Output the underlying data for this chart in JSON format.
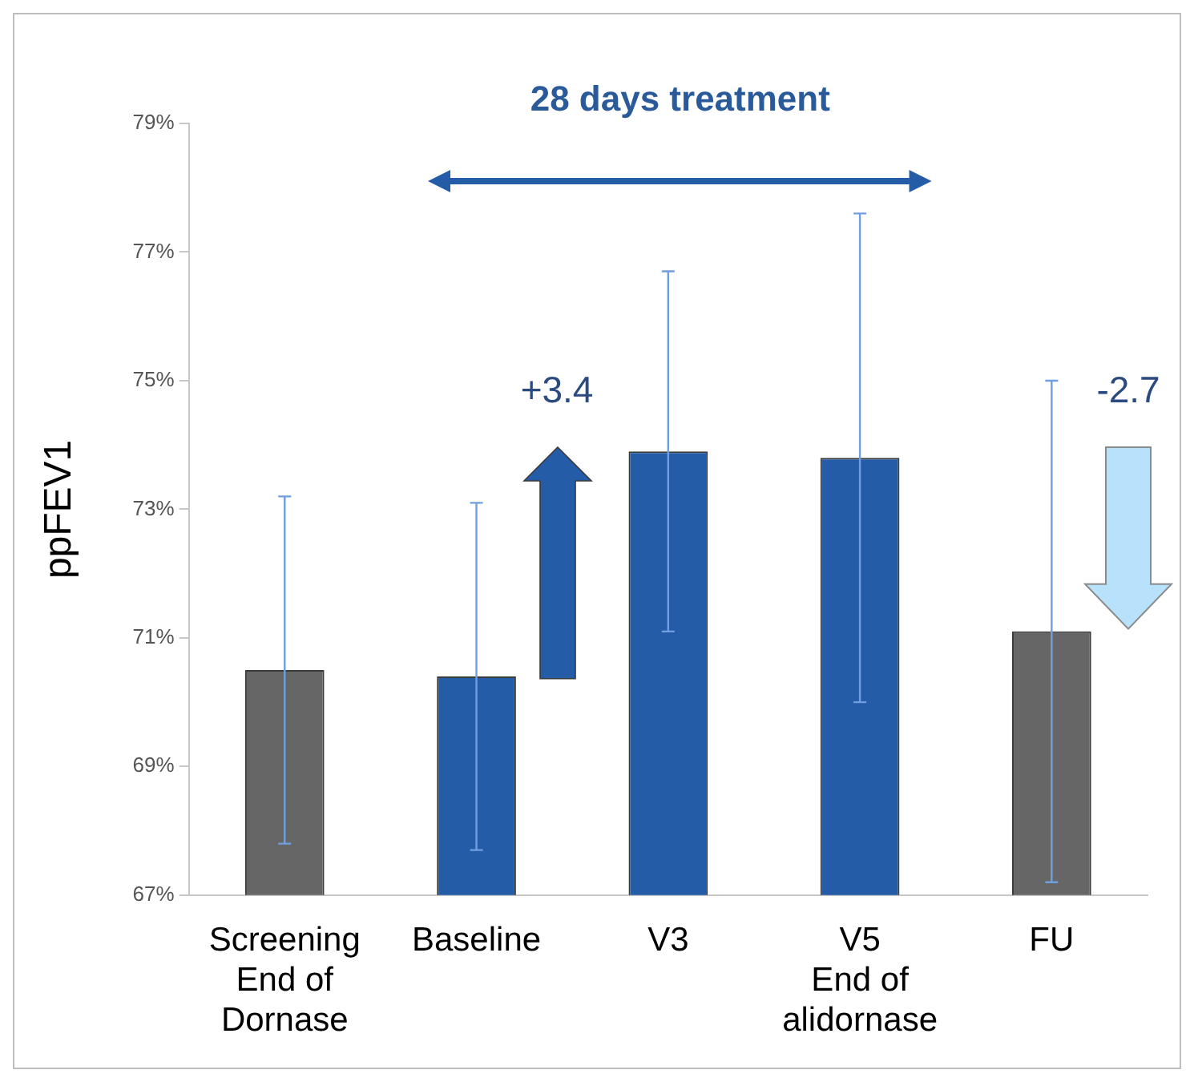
{
  "chart_data": {
    "type": "bar",
    "ylabel": "ppFEV1",
    "categories": [
      "Screening\nEnd of\nDornase",
      "Baseline",
      "V3",
      "V5\nEnd of\nalidornase",
      "FU"
    ],
    "values": [
      70.5,
      70.4,
      73.9,
      73.8,
      71.1
    ],
    "colors": [
      "#666666",
      "#245ca8",
      "#245ca8",
      "#245ca8",
      "#666666"
    ],
    "errors": [
      2.7,
      2.7,
      2.8,
      3.8,
      3.9
    ],
    "ylim": [
      67,
      79
    ],
    "yticks": [
      {
        "value": 67,
        "label": "67%"
      },
      {
        "value": 69,
        "label": "69%"
      },
      {
        "value": 71,
        "label": "71%"
      },
      {
        "value": 73,
        "label": "73%"
      },
      {
        "value": 75,
        "label": "75%"
      },
      {
        "value": 77,
        "label": "77%"
      },
      {
        "value": 79,
        "label": "79%"
      }
    ],
    "grid": false,
    "annotations": [
      "28 days treatment",
      "+3.4",
      "-2.7"
    ]
  }
}
